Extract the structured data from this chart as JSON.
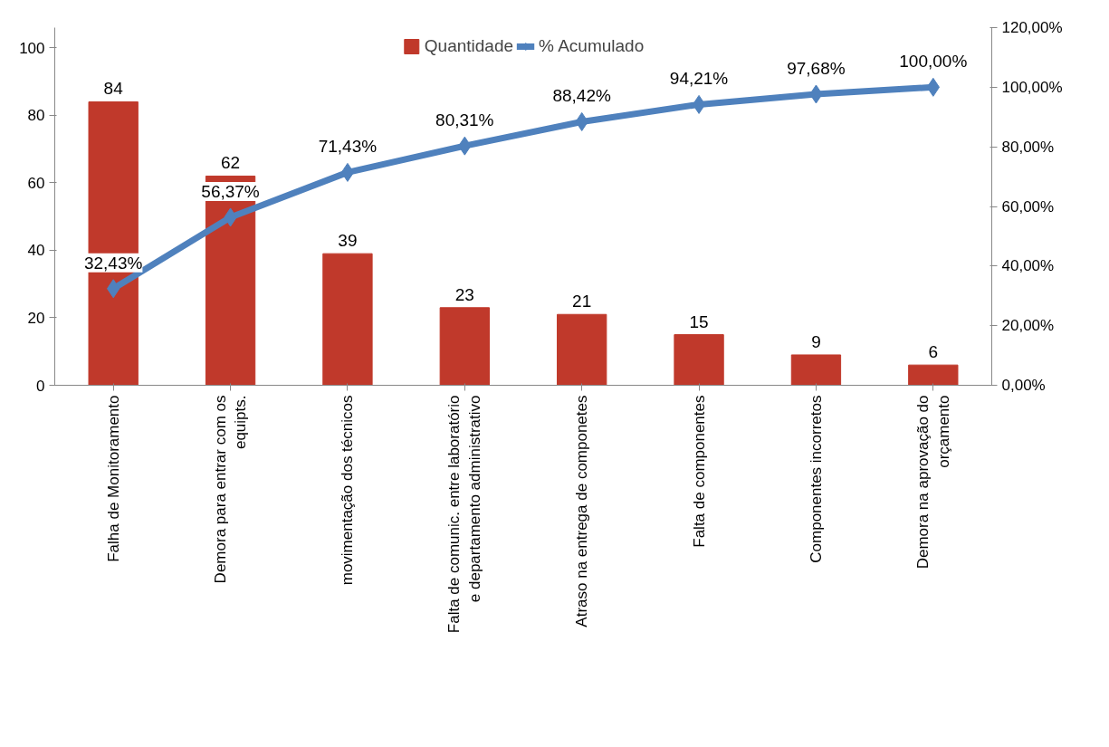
{
  "chart_data": {
    "type": "bar",
    "categories": [
      "Falha de Monitoramento",
      "Demora para entrar com os\nequipts.",
      "movimentação dos técnicos",
      "Falta de comunic. entre laboratório\ne departamento administrativo",
      "Atraso na entrega de componetes",
      "Falta de componentes",
      "Componentes incorretos",
      "Demora na aprovação do\norçamento"
    ],
    "series": [
      {
        "name": "Quantidade",
        "color": "#c0392b",
        "values": [
          84,
          62,
          39,
          23,
          21,
          15,
          9,
          6
        ],
        "value_labels": [
          "84",
          "62",
          "39",
          "23",
          "21",
          "15",
          "9",
          "6"
        ]
      },
      {
        "name": "% Acumulado",
        "type": "line",
        "axis": "y2",
        "color": "#4f81bd",
        "marker": "diamond",
        "values": [
          32.43,
          56.37,
          71.43,
          80.31,
          88.42,
          94.21,
          97.68,
          100.0
        ],
        "value_labels": [
          "32,43%",
          "56,37%",
          "71,43%",
          "80,31%",
          "88,42%",
          "94,21%",
          "97,68%",
          "100,00%"
        ]
      }
    ],
    "ylim": [
      0,
      106
    ],
    "yticks": [
      0,
      20,
      40,
      60,
      80,
      100
    ],
    "y2lim": [
      0,
      120
    ],
    "y2ticks": [
      {
        "value": 0,
        "label": "0,00%"
      },
      {
        "value": 20,
        "label": "20,00%"
      },
      {
        "value": 40,
        "label": "40,00%"
      },
      {
        "value": 60,
        "label": "60,00%"
      },
      {
        "value": 80,
        "label": "80,00%"
      },
      {
        "value": 100,
        "label": "100,00%"
      },
      {
        "value": 120,
        "label": "120,00%"
      }
    ],
    "grid": false,
    "legend": "top"
  }
}
